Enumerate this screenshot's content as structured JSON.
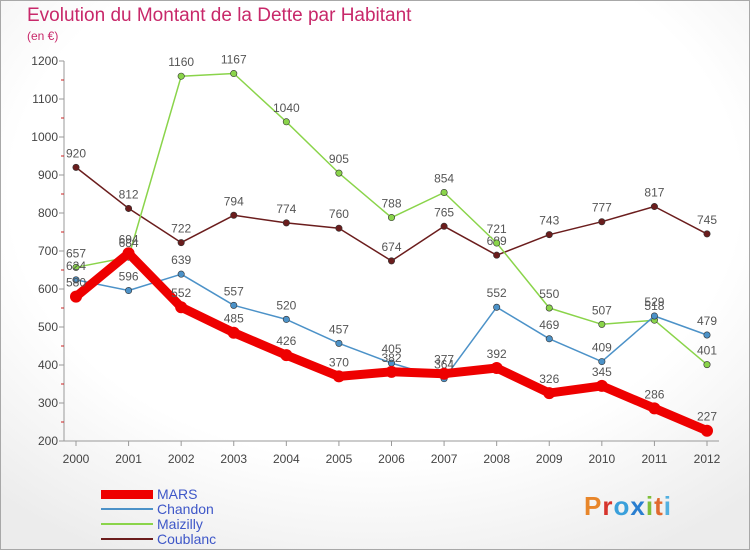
{
  "chart_data": {
    "type": "line",
    "title": "Evolution du Montant de la Dette par Habitant",
    "subtitle": "(en €)",
    "categories": [
      "2000",
      "2001",
      "2002",
      "2003",
      "2004",
      "2005",
      "2006",
      "2007",
      "2008",
      "2009",
      "2010",
      "2011",
      "2012"
    ],
    "y_ticks": [
      200,
      300,
      400,
      500,
      600,
      700,
      800,
      900,
      1000,
      1100,
      1200
    ],
    "ylim": [
      200,
      1200
    ],
    "grid": false,
    "legend_position": "bottom-left",
    "series": [
      {
        "name": "Coublanc",
        "color": "#6b1d1d",
        "values": [
          920,
          812,
          722,
          794,
          774,
          760,
          674,
          765,
          689,
          743,
          777,
          817,
          745
        ]
      },
      {
        "name": "Maizilly",
        "color": "#8ad44a",
        "values": [
          657,
          684,
          1160,
          1167,
          1040,
          905,
          788,
          854,
          721,
          550,
          507,
          518,
          401
        ]
      },
      {
        "name": "Chandon",
        "color": "#4c92c8",
        "values": [
          624,
          596,
          639,
          557,
          520,
          457,
          405,
          364,
          552,
          469,
          409,
          529,
          479
        ]
      },
      {
        "name": "MARS",
        "color": "#ee0000",
        "values": [
          580,
          694,
          552,
          485,
          426,
          370,
          382,
          377,
          392,
          326,
          345,
          286,
          227
        ]
      }
    ]
  },
  "legend": {
    "items": [
      {
        "name": "MARS",
        "color": "#ee0000",
        "width": 9
      },
      {
        "name": "Chandon",
        "color": "#4c92c8",
        "width": 1.5
      },
      {
        "name": "Maizilly",
        "color": "#8ad44a",
        "width": 1.5
      },
      {
        "name": "Coublanc",
        "color": "#6b1d1d",
        "width": 1.5
      }
    ]
  },
  "logo": {
    "text": "Proxiti"
  }
}
